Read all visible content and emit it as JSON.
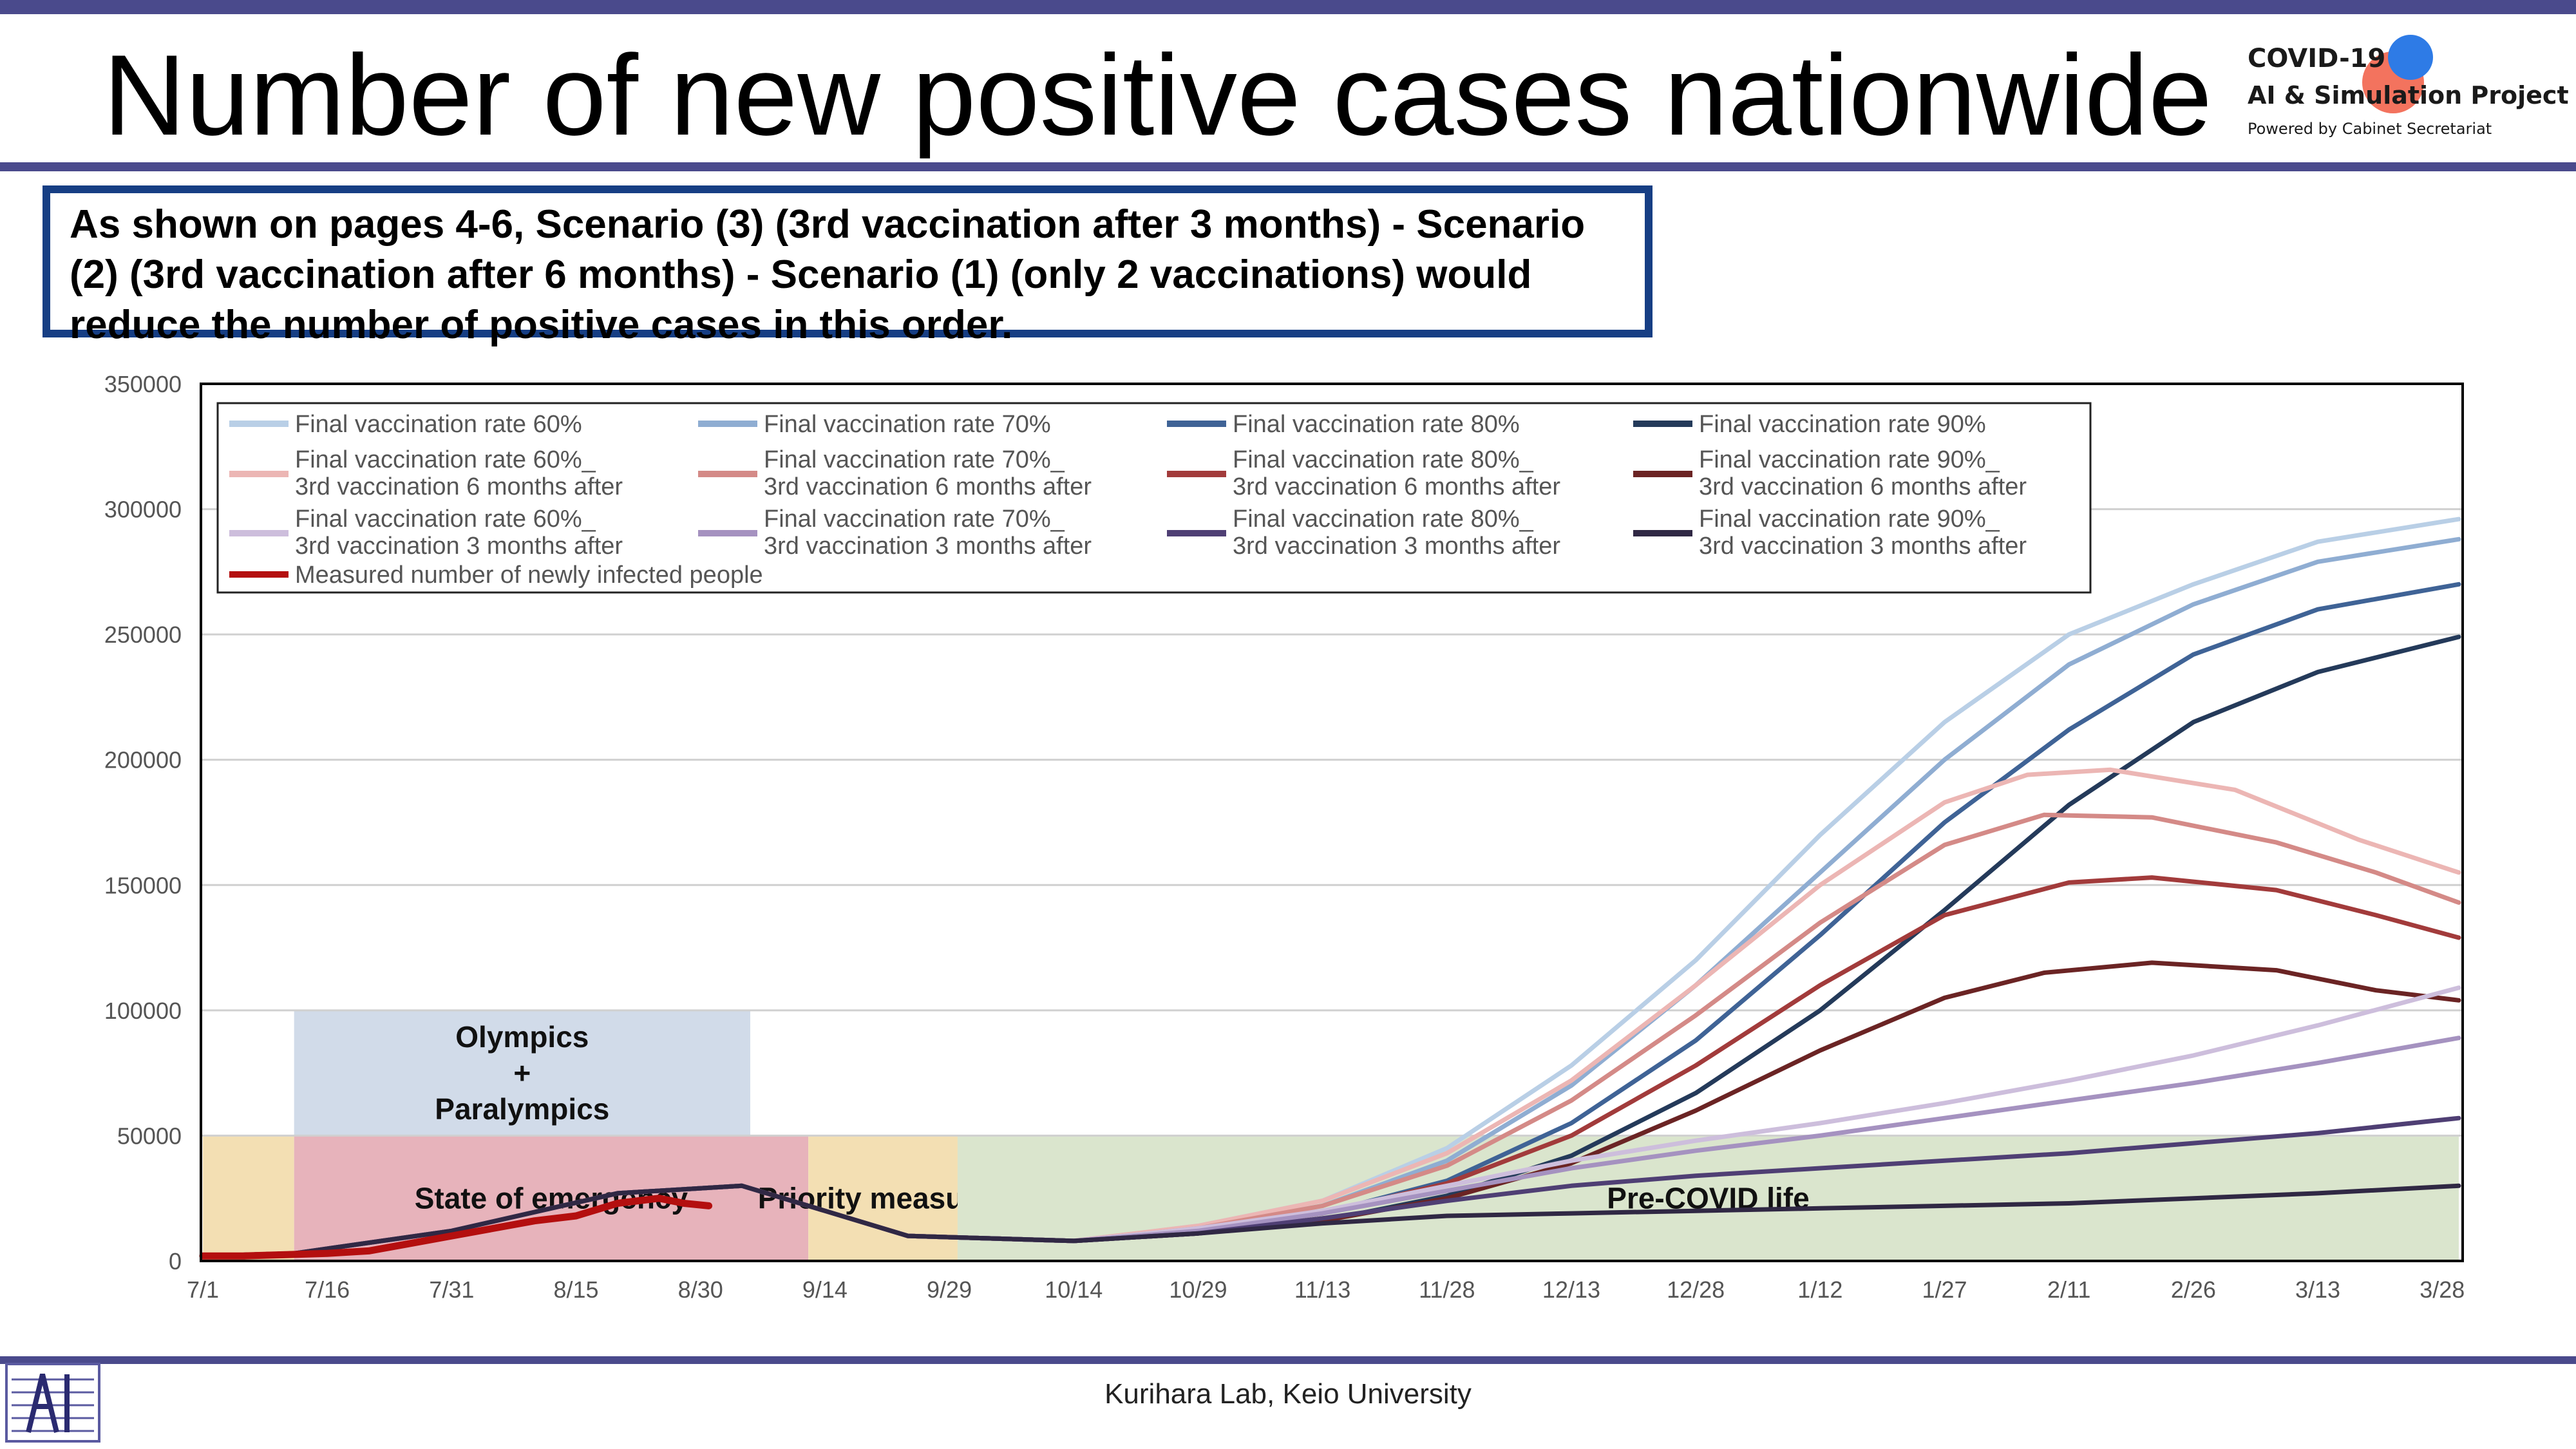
{
  "header": {
    "title": "Number of new positive cases nationwide",
    "logo_line1": "COVID-19",
    "logo_line2": "AI & Simulation Project",
    "logo_line3": "Powered by Cabinet Secretariat"
  },
  "note": "As shown on pages 4-6, Scenario (3) (3rd vaccination after 3 months) - Scenario (2) (3rd vaccination after 6 months) - Scenario (1) (only 2 vaccinations) would reduce the number of positive cases in this order.",
  "footer": "Kurihara Lab, Keio University",
  "colors": {
    "header_bar": "#4a4a8c",
    "note_border": "#163e84"
  },
  "chart_data": {
    "type": "line",
    "title": "",
    "xlabel": "",
    "ylabel": "",
    "ylim": [
      0,
      350000
    ],
    "yticks": [
      "0",
      "50000",
      "100000",
      "150000",
      "200000",
      "250000",
      "300000",
      "350000"
    ],
    "xticks": [
      "7/1",
      "7/16",
      "7/31",
      "8/15",
      "8/30",
      "9/14",
      "9/29",
      "10/14",
      "10/29",
      "11/13",
      "11/28",
      "12/13",
      "12/28",
      "1/12",
      "1/27",
      "2/11",
      "2/26",
      "3/13",
      "3/28"
    ],
    "xlim_days": [
      0,
      272
    ],
    "grid": "horizontal",
    "legend_position": "top-left",
    "regions": [
      {
        "label": "",
        "x0": 0,
        "x1": 11,
        "y0": 0,
        "y1": 50000,
        "color": "#f3dfb3"
      },
      {
        "label": "State of emergency",
        "x0": 11,
        "x1": 73,
        "y0": 0,
        "y1": 50000,
        "color": "#e7b3bb"
      },
      {
        "label": "Priority measures",
        "x0": 73,
        "x1": 91,
        "y0": 0,
        "y1": 50000,
        "color": "#f3dfb3"
      },
      {
        "label": "Pre-COVID life",
        "x0": 91,
        "x1": 272,
        "y0": 0,
        "y1": 50000,
        "color": "#dae5cd"
      },
      {
        "label": "Olympics\n+\nParalympics",
        "x0": 11,
        "x1": 66,
        "y0": 50000,
        "y1": 100000,
        "color": "#d1dbe9"
      }
    ],
    "series": [
      {
        "name": "Final vaccination rate 60%",
        "color": "#b9cfe6",
        "width": 7,
        "points": [
          [
            0,
            2000
          ],
          [
            11,
            3000
          ],
          [
            30,
            12000
          ],
          [
            50,
            27000
          ],
          [
            65,
            30000
          ],
          [
            75,
            20000
          ],
          [
            85,
            10000
          ],
          [
            95,
            9000
          ],
          [
            105,
            8000
          ],
          [
            120,
            14000
          ],
          [
            135,
            24000
          ],
          [
            150,
            45000
          ],
          [
            165,
            78000
          ],
          [
            180,
            120000
          ],
          [
            195,
            170000
          ],
          [
            210,
            215000
          ],
          [
            225,
            250000
          ],
          [
            240,
            270000
          ],
          [
            255,
            287000
          ],
          [
            272,
            296000
          ]
        ]
      },
      {
        "name": "Final vaccination rate 70%",
        "color": "#8fadd2",
        "width": 7,
        "points": [
          [
            0,
            2000
          ],
          [
            11,
            3000
          ],
          [
            30,
            12000
          ],
          [
            50,
            27000
          ],
          [
            65,
            30000
          ],
          [
            75,
            20000
          ],
          [
            85,
            10000
          ],
          [
            95,
            9000
          ],
          [
            105,
            8000
          ],
          [
            120,
            13000
          ],
          [
            135,
            22000
          ],
          [
            150,
            40000
          ],
          [
            165,
            70000
          ],
          [
            180,
            110000
          ],
          [
            195,
            155000
          ],
          [
            210,
            200000
          ],
          [
            225,
            238000
          ],
          [
            240,
            262000
          ],
          [
            255,
            279000
          ],
          [
            272,
            288000
          ]
        ]
      },
      {
        "name": "Final vaccination rate 80%",
        "color": "#3f6396",
        "width": 7,
        "points": [
          [
            0,
            2000
          ],
          [
            11,
            3000
          ],
          [
            30,
            12000
          ],
          [
            50,
            27000
          ],
          [
            65,
            30000
          ],
          [
            75,
            20000
          ],
          [
            85,
            10000
          ],
          [
            95,
            9000
          ],
          [
            105,
            8000
          ],
          [
            120,
            12000
          ],
          [
            135,
            19000
          ],
          [
            150,
            32000
          ],
          [
            165,
            55000
          ],
          [
            180,
            88000
          ],
          [
            195,
            130000
          ],
          [
            210,
            175000
          ],
          [
            225,
            212000
          ],
          [
            240,
            242000
          ],
          [
            255,
            260000
          ],
          [
            272,
            270000
          ]
        ]
      },
      {
        "name": "Final vaccination rate 90%",
        "color": "#243a5a",
        "width": 7,
        "points": [
          [
            0,
            2000
          ],
          [
            11,
            3000
          ],
          [
            30,
            12000
          ],
          [
            50,
            27000
          ],
          [
            65,
            30000
          ],
          [
            75,
            20000
          ],
          [
            85,
            10000
          ],
          [
            95,
            9000
          ],
          [
            105,
            8000
          ],
          [
            120,
            11000
          ],
          [
            135,
            16000
          ],
          [
            150,
            26000
          ],
          [
            165,
            42000
          ],
          [
            180,
            67000
          ],
          [
            195,
            100000
          ],
          [
            210,
            140000
          ],
          [
            225,
            182000
          ],
          [
            240,
            215000
          ],
          [
            255,
            235000
          ],
          [
            272,
            249000
          ]
        ]
      },
      {
        "name": "Final vaccination rate 60%_\n3rd vaccination 6 months after",
        "color": "#ecb6b4",
        "width": 7,
        "points": [
          [
            0,
            2000
          ],
          [
            11,
            3000
          ],
          [
            30,
            12000
          ],
          [
            50,
            27000
          ],
          [
            65,
            30000
          ],
          [
            75,
            20000
          ],
          [
            85,
            10000
          ],
          [
            95,
            9000
          ],
          [
            105,
            8000
          ],
          [
            120,
            14000
          ],
          [
            135,
            24000
          ],
          [
            150,
            43000
          ],
          [
            165,
            72000
          ],
          [
            180,
            110000
          ],
          [
            195,
            150000
          ],
          [
            210,
            183000
          ],
          [
            220,
            194000
          ],
          [
            230,
            196000
          ],
          [
            245,
            188000
          ],
          [
            260,
            168000
          ],
          [
            272,
            155000
          ]
        ]
      },
      {
        "name": "Final vaccination rate 70%_\n3rd vaccination 6 months after",
        "color": "#d48a87",
        "width": 7,
        "points": [
          [
            0,
            2000
          ],
          [
            11,
            3000
          ],
          [
            30,
            12000
          ],
          [
            50,
            27000
          ],
          [
            65,
            30000
          ],
          [
            75,
            20000
          ],
          [
            85,
            10000
          ],
          [
            95,
            9000
          ],
          [
            105,
            8000
          ],
          [
            120,
            13000
          ],
          [
            135,
            22000
          ],
          [
            150,
            38000
          ],
          [
            165,
            64000
          ],
          [
            180,
            98000
          ],
          [
            195,
            135000
          ],
          [
            210,
            166000
          ],
          [
            222,
            178000
          ],
          [
            235,
            177000
          ],
          [
            250,
            167000
          ],
          [
            262,
            155000
          ],
          [
            272,
            143000
          ]
        ]
      },
      {
        "name": "Final vaccination rate 80%_\n3rd vaccination 6 months after",
        "color": "#a23b3b",
        "width": 7,
        "points": [
          [
            0,
            2000
          ],
          [
            11,
            3000
          ],
          [
            30,
            12000
          ],
          [
            50,
            27000
          ],
          [
            65,
            30000
          ],
          [
            75,
            20000
          ],
          [
            85,
            10000
          ],
          [
            95,
            9000
          ],
          [
            105,
            8000
          ],
          [
            120,
            12000
          ],
          [
            135,
            19000
          ],
          [
            150,
            31000
          ],
          [
            165,
            50000
          ],
          [
            180,
            78000
          ],
          [
            195,
            110000
          ],
          [
            210,
            138000
          ],
          [
            225,
            151000
          ],
          [
            235,
            153000
          ],
          [
            250,
            148000
          ],
          [
            262,
            138000
          ],
          [
            272,
            129000
          ]
        ]
      },
      {
        "name": "Final vaccination rate 90%_\n3rd vaccination 6 months after",
        "color": "#6b2424",
        "width": 7,
        "points": [
          [
            0,
            2000
          ],
          [
            11,
            3000
          ],
          [
            30,
            12000
          ],
          [
            50,
            27000
          ],
          [
            65,
            30000
          ],
          [
            75,
            20000
          ],
          [
            85,
            10000
          ],
          [
            95,
            9000
          ],
          [
            105,
            8000
          ],
          [
            120,
            11000
          ],
          [
            135,
            16000
          ],
          [
            150,
            25000
          ],
          [
            165,
            39000
          ],
          [
            180,
            60000
          ],
          [
            195,
            84000
          ],
          [
            210,
            105000
          ],
          [
            222,
            115000
          ],
          [
            235,
            119000
          ],
          [
            250,
            116000
          ],
          [
            262,
            108000
          ],
          [
            272,
            104000
          ]
        ]
      },
      {
        "name": "Final vaccination rate 60%_\n3rd vaccination 3 months after",
        "color": "#cdbedc",
        "width": 7,
        "points": [
          [
            0,
            2000
          ],
          [
            11,
            3000
          ],
          [
            30,
            12000
          ],
          [
            50,
            27000
          ],
          [
            65,
            30000
          ],
          [
            75,
            20000
          ],
          [
            85,
            10000
          ],
          [
            95,
            9000
          ],
          [
            105,
            8000
          ],
          [
            120,
            13000
          ],
          [
            135,
            20000
          ],
          [
            150,
            30000
          ],
          [
            165,
            40000
          ],
          [
            180,
            48000
          ],
          [
            195,
            55000
          ],
          [
            210,
            63000
          ],
          [
            225,
            72000
          ],
          [
            240,
            82000
          ],
          [
            255,
            94000
          ],
          [
            272,
            109000
          ]
        ]
      },
      {
        "name": "Final vaccination rate 70%_\n3rd vaccination 3 months after",
        "color": "#a592c0",
        "width": 7,
        "points": [
          [
            0,
            2000
          ],
          [
            11,
            3000
          ],
          [
            30,
            12000
          ],
          [
            50,
            27000
          ],
          [
            65,
            30000
          ],
          [
            75,
            20000
          ],
          [
            85,
            10000
          ],
          [
            95,
            9000
          ],
          [
            105,
            8000
          ],
          [
            120,
            12000
          ],
          [
            135,
            19000
          ],
          [
            150,
            28000
          ],
          [
            165,
            37000
          ],
          [
            180,
            44000
          ],
          [
            195,
            50000
          ],
          [
            210,
            57000
          ],
          [
            225,
            64000
          ],
          [
            240,
            71000
          ],
          [
            255,
            79000
          ],
          [
            272,
            89000
          ]
        ]
      },
      {
        "name": "Final vaccination rate 80%_\n3rd vaccination 3 months after",
        "color": "#4f3f74",
        "width": 7,
        "points": [
          [
            0,
            2000
          ],
          [
            11,
            3000
          ],
          [
            30,
            12000
          ],
          [
            50,
            27000
          ],
          [
            65,
            30000
          ],
          [
            75,
            20000
          ],
          [
            85,
            10000
          ],
          [
            95,
            9000
          ],
          [
            105,
            8000
          ],
          [
            120,
            11000
          ],
          [
            135,
            17000
          ],
          [
            150,
            24000
          ],
          [
            165,
            30000
          ],
          [
            180,
            34000
          ],
          [
            195,
            37000
          ],
          [
            210,
            40000
          ],
          [
            225,
            43000
          ],
          [
            240,
            47000
          ],
          [
            255,
            51000
          ],
          [
            272,
            57000
          ]
        ]
      },
      {
        "name": "Final vaccination rate 90%_\n3rd vaccination 3 months after",
        "color": "#302844",
        "width": 7,
        "points": [
          [
            0,
            2000
          ],
          [
            11,
            3000
          ],
          [
            30,
            12000
          ],
          [
            50,
            27000
          ],
          [
            65,
            30000
          ],
          [
            75,
            20000
          ],
          [
            85,
            10000
          ],
          [
            95,
            9000
          ],
          [
            105,
            8000
          ],
          [
            120,
            11000
          ],
          [
            135,
            15000
          ],
          [
            150,
            18000
          ],
          [
            165,
            19000
          ],
          [
            180,
            20000
          ],
          [
            195,
            21000
          ],
          [
            210,
            22000
          ],
          [
            225,
            23000
          ],
          [
            240,
            25000
          ],
          [
            255,
            27000
          ],
          [
            272,
            30000
          ]
        ]
      },
      {
        "name": "Measured number of newly infected people",
        "color": "#b40f0f",
        "width": 11,
        "points": [
          [
            0,
            2000
          ],
          [
            5,
            2000
          ],
          [
            10,
            2500
          ],
          [
            15,
            3000
          ],
          [
            20,
            4000
          ],
          [
            25,
            7000
          ],
          [
            30,
            10000
          ],
          [
            35,
            13000
          ],
          [
            40,
            16000
          ],
          [
            45,
            18000
          ],
          [
            50,
            23000
          ],
          [
            55,
            25000
          ],
          [
            58,
            23000
          ],
          [
            61,
            22000
          ]
        ]
      }
    ]
  }
}
